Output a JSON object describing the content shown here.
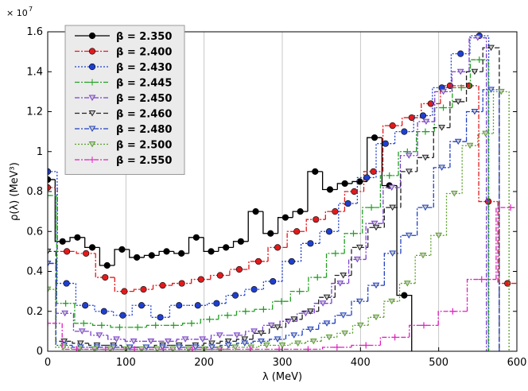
{
  "chart_data": {
    "type": "step",
    "xlabel": "λ (MeV)",
    "ylabel": "ρ(λ) (MeV³)",
    "y_multiplier": {
      "base": "× 10",
      "exponent": "7"
    },
    "xlim": [
      0,
      600
    ],
    "xticks": [
      0,
      100,
      200,
      300,
      400,
      500,
      600
    ],
    "ylim": [
      0,
      1.6
    ],
    "yticks": [
      0,
      0.2,
      0.4,
      0.6,
      0.8,
      1,
      1.2,
      1.4,
      1.6
    ],
    "grid": "x",
    "legend": "upper left",
    "series": [
      {
        "name": "β = 2.350",
        "color": "#000000",
        "marker": "circle",
        "dash": "solid",
        "x": [
          0,
          19,
          38,
          57,
          76,
          95,
          114,
          133,
          152,
          171,
          190,
          209,
          228,
          247,
          266,
          285,
          304,
          323,
          342,
          361,
          380,
          399,
          418,
          437,
          456
        ],
        "values": [
          0.86,
          0.55,
          0.57,
          0.52,
          0.43,
          0.51,
          0.47,
          0.48,
          0.5,
          0.49,
          0.57,
          0.5,
          0.52,
          0.55,
          0.7,
          0.59,
          0.67,
          0.7,
          0.9,
          0.81,
          0.84,
          0.85,
          1.07,
          0.83,
          0.28
        ]
      },
      {
        "name": "β = 2.400",
        "color": "#e31a1c",
        "marker": "circle",
        "dash": "dashdot",
        "x": [
          0,
          24.5,
          49,
          73.5,
          98,
          122.5,
          147,
          171.5,
          196,
          220.5,
          245,
          269.5,
          294,
          318.5,
          343,
          367.5,
          392,
          416.5,
          441,
          465.5,
          490,
          514.5,
          539,
          563.5,
          588
        ],
        "values": [
          0.82,
          0.5,
          0.49,
          0.37,
          0.3,
          0.31,
          0.33,
          0.34,
          0.36,
          0.38,
          0.41,
          0.45,
          0.52,
          0.6,
          0.66,
          0.7,
          0.8,
          0.9,
          1.13,
          1.17,
          1.24,
          1.33,
          1.33,
          0.75,
          0.34
        ]
      },
      {
        "name": "β = 2.430",
        "color": "#1f3fd0",
        "marker": "circle",
        "dash": "dotted",
        "x": [
          0,
          24,
          48,
          72,
          96,
          120,
          144,
          168,
          192,
          216,
          240,
          264,
          288,
          312,
          336,
          360,
          384,
          408,
          432,
          456,
          480,
          504,
          528,
          552
        ],
        "values": [
          0.9,
          0.34,
          0.23,
          0.2,
          0.18,
          0.23,
          0.17,
          0.23,
          0.23,
          0.24,
          0.28,
          0.31,
          0.35,
          0.45,
          0.54,
          0.6,
          0.74,
          0.87,
          1.04,
          1.1,
          1.18,
          1.32,
          1.49,
          1.58
        ]
      },
      {
        "name": "β = 2.445",
        "color": "#22a022",
        "marker": "plus",
        "dash": "dashdot",
        "x": [
          0,
          23,
          46,
          69,
          92,
          115,
          138,
          161,
          184,
          207,
          230,
          253,
          276,
          299,
          322,
          345,
          368,
          391,
          414,
          437,
          460,
          483,
          506,
          529,
          552
        ],
        "values": [
          0.78,
          0.24,
          0.14,
          0.13,
          0.12,
          0.12,
          0.13,
          0.13,
          0.14,
          0.16,
          0.18,
          0.2,
          0.21,
          0.25,
          0.3,
          0.37,
          0.49,
          0.59,
          0.72,
          0.88,
          1,
          1.1,
          1.22,
          1.32,
          1.46
        ]
      },
      {
        "name": "β = 2.450",
        "color": "#7b3fd0",
        "marker": "triangle",
        "dash": "dashdot",
        "x": [
          0,
          22,
          44,
          66,
          88,
          110,
          132,
          154,
          176,
          198,
          220,
          242,
          264,
          286,
          308,
          330,
          352,
          374,
          396,
          418,
          440,
          462,
          484,
          506,
          528,
          550
        ],
        "values": [
          0.44,
          0.19,
          0.1,
          0.08,
          0.06,
          0.05,
          0.05,
          0.05,
          0.06,
          0.06,
          0.08,
          0.08,
          0.1,
          0.13,
          0.15,
          0.19,
          0.24,
          0.34,
          0.46,
          0.64,
          0.82,
          0.98,
          1.15,
          1.3,
          1.4,
          1.57
        ]
      },
      {
        "name": "β = 2.460",
        "color": "#222222",
        "marker": "triangle",
        "dash": "dashed",
        "x": [
          0,
          21,
          42,
          63,
          84,
          105,
          126,
          147,
          168,
          189,
          210,
          231,
          252,
          273,
          294,
          315,
          336,
          357,
          378,
          399,
          420,
          441,
          462,
          483,
          504,
          525,
          546,
          567
        ],
        "values": [
          0.5,
          0.05,
          0.04,
          0.03,
          0.03,
          0.02,
          0.02,
          0.03,
          0.03,
          0.03,
          0.04,
          0.05,
          0.06,
          0.09,
          0.12,
          0.16,
          0.2,
          0.27,
          0.38,
          0.52,
          0.62,
          0.72,
          0.9,
          0.97,
          1.12,
          1.25,
          1.4,
          1.52
        ]
      },
      {
        "name": "β = 2.480",
        "color": "#2040c0",
        "marker": "triangle",
        "dash": "dashdot",
        "x": [
          0,
          21,
          42,
          63,
          84,
          105,
          126,
          147,
          168,
          189,
          210,
          231,
          252,
          273,
          294,
          315,
          336,
          357,
          378,
          399,
          420,
          441,
          462,
          483,
          504,
          525,
          546,
          567
        ],
        "values": [
          0.44,
          0.03,
          0.02,
          0.02,
          0.02,
          0.02,
          0.02,
          0.02,
          0.02,
          0.02,
          0.02,
          0.03,
          0.04,
          0.05,
          0.06,
          0.08,
          0.11,
          0.14,
          0.18,
          0.25,
          0.33,
          0.49,
          0.58,
          0.72,
          0.92,
          1.05,
          1.2,
          1.31
        ]
      },
      {
        "name": "β = 2.500",
        "color": "#5aa02a",
        "marker": "triangle",
        "dash": "dotted",
        "x": [
          0,
          20,
          40,
          60,
          80,
          100,
          120,
          140,
          160,
          180,
          200,
          220,
          240,
          260,
          280,
          300,
          320,
          340,
          360,
          380,
          400,
          420,
          440,
          460,
          480,
          500,
          520,
          540,
          560,
          580
        ],
        "values": [
          0.31,
          0.02,
          0.01,
          0.01,
          0.01,
          0.01,
          0.01,
          0.01,
          0.01,
          0.01,
          0.01,
          0.01,
          0.02,
          0.02,
          0.03,
          0.03,
          0.04,
          0.05,
          0.07,
          0.09,
          0.13,
          0.17,
          0.25,
          0.34,
          0.48,
          0.58,
          0.79,
          1.03,
          1.09,
          1.3
        ]
      },
      {
        "name": "β = 2.550",
        "color": "#e020c0",
        "marker": "plus",
        "dash": "dashdot",
        "x": [
          0,
          37,
          74,
          111,
          148,
          185,
          222,
          259,
          296,
          333,
          370,
          407,
          444,
          481,
          518,
          555,
          592
        ],
        "values": [
          0.14,
          0.01,
          0.01,
          0.01,
          0.01,
          0.01,
          0.01,
          0.01,
          0.01,
          0.01,
          0.02,
          0.03,
          0.07,
          0.13,
          0.2,
          0.36,
          0.72
        ]
      }
    ]
  }
}
